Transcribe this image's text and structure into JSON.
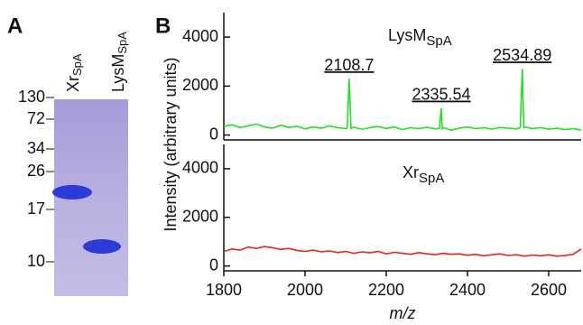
{
  "panel_a": {
    "label": "A",
    "lanes": [
      {
        "name": "Xr",
        "sub": "SpA"
      },
      {
        "name": "LysM",
        "sub": "SpA"
      }
    ],
    "markers": [
      130,
      72,
      34,
      26,
      17,
      10
    ]
  },
  "panel_b": {
    "label": "B",
    "ylabel": "Intensity (arbitrary units)",
    "xlabel": "m/z"
  },
  "chart_data": [
    {
      "type": "line",
      "series": [
        {
          "name": "LysM",
          "name_sub": "SpA",
          "color": "#22e022",
          "x": [
            1800,
            1820,
            1840,
            1860,
            1880,
            1900,
            1920,
            1940,
            1960,
            1980,
            2000,
            2020,
            2040,
            2060,
            2080,
            2100,
            2104,
            2108.7,
            2113,
            2120,
            2140,
            2160,
            2180,
            2200,
            2220,
            2240,
            2260,
            2280,
            2300,
            2320,
            2331,
            2335.54,
            2338,
            2340,
            2360,
            2380,
            2400,
            2420,
            2440,
            2460,
            2480,
            2500,
            2520,
            2530,
            2534.89,
            2539,
            2540,
            2560,
            2580,
            2600,
            2620,
            2640,
            2660,
            2680
          ],
          "values": [
            350,
            420,
            300,
            380,
            450,
            330,
            280,
            400,
            310,
            360,
            250,
            330,
            280,
            370,
            300,
            260,
            300,
            2300,
            280,
            320,
            240,
            300,
            350,
            270,
            330,
            220,
            300,
            260,
            320,
            250,
            280,
            1100,
            260,
            300,
            200,
            280,
            330,
            260,
            300,
            240,
            310,
            280,
            250,
            300,
            2700,
            280,
            330,
            260,
            300,
            240,
            280,
            220,
            260,
            200
          ]
        }
      ],
      "peak_labels": [
        2108.7,
        2335.54,
        2534.89
      ],
      "xlim": [
        1800,
        2680
      ],
      "ylim": [
        -200,
        5000
      ],
      "yticks": [
        0,
        2000,
        4000
      ]
    },
    {
      "type": "line",
      "series": [
        {
          "name": "Xr",
          "name_sub": "SpA",
          "color": "#ee2222",
          "x": [
            1800,
            1820,
            1840,
            1860,
            1880,
            1900,
            1920,
            1940,
            1960,
            1980,
            2000,
            2020,
            2040,
            2060,
            2080,
            2100,
            2120,
            2140,
            2160,
            2180,
            2200,
            2220,
            2240,
            2260,
            2280,
            2300,
            2320,
            2340,
            2360,
            2380,
            2400,
            2420,
            2440,
            2460,
            2480,
            2500,
            2520,
            2540,
            2560,
            2580,
            2600,
            2620,
            2640,
            2660,
            2680
          ],
          "values": [
            600,
            700,
            650,
            780,
            720,
            800,
            750,
            680,
            720,
            640,
            600,
            650,
            580,
            620,
            550,
            600,
            520,
            580,
            540,
            600,
            500,
            560,
            520,
            480,
            550,
            500,
            460,
            520,
            480,
            500,
            440,
            480,
            420,
            460,
            500,
            430,
            470,
            400,
            450,
            420,
            460,
            400,
            430,
            480,
            700
          ]
        }
      ],
      "xlim": [
        1800,
        2680
      ],
      "ylim": [
        -200,
        5000
      ],
      "yticks": [
        0,
        2000,
        4000
      ],
      "xticks": [
        1800,
        2000,
        2200,
        2400,
        2600
      ]
    }
  ]
}
